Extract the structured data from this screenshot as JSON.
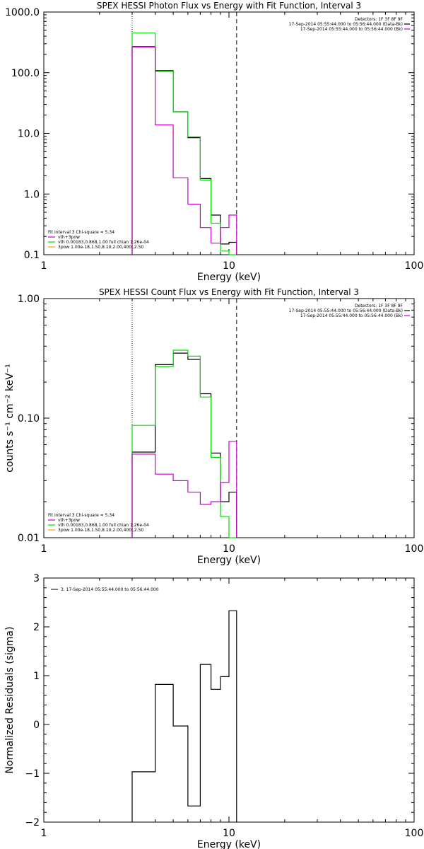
{
  "chart_data": [
    {
      "type": "line",
      "title": "SPEX HESSI Photon Flux vs Energy with Fit Function, Interval 3",
      "xlabel": "Energy (keV)",
      "ylabel": "",
      "x_scale": "log",
      "y_scale": "log",
      "xlim": [
        1,
        100
      ],
      "ylim": [
        0.1,
        1000
      ],
      "x_ticks": [
        {
          "v": 1,
          "label": "1"
        },
        {
          "v": 10,
          "label": "10"
        },
        {
          "v": 100,
          "label": "100"
        }
      ],
      "y_ticks": [
        {
          "v": 0.1,
          "label": "0.1"
        },
        {
          "v": 1,
          "label": "1.0"
        },
        {
          "v": 10,
          "label": "10.0"
        },
        {
          "v": 100,
          "label": "100.0"
        },
        {
          "v": 1000,
          "label": "1000.0"
        }
      ],
      "vlines": [
        {
          "x": 3.0,
          "style": "dotted"
        },
        {
          "x": 11.0,
          "style": "dashed"
        }
      ],
      "bin_edges": [
        3.0,
        4.0,
        5.0,
        6.0,
        7.0,
        8.0,
        9.0,
        10.0,
        11.0
      ],
      "series": [
        {
          "key": "data",
          "color": "#000000",
          "values": [
            270,
            108,
            22.7,
            8.5,
            1.8,
            0.45,
            0.15,
            0.16
          ]
        },
        {
          "key": "fit",
          "color": "#00dd00",
          "values": [
            450,
            105,
            22.7,
            8.8,
            1.7,
            0.33,
            0.115,
            0.1
          ]
        },
        {
          "key": "bk",
          "color": "#cc00cc",
          "values": [
            265,
            13.8,
            1.85,
            0.68,
            0.28,
            0.155,
            0.28,
            0.45
          ]
        }
      ],
      "legend_top": {
        "header": "Detectors: 1F 3F 8F 9F",
        "entries": [
          {
            "text": "17-Sep-2014 05:55:44.000 to 05:56:44.000 (Data-Bk)",
            "color": "#000000"
          },
          {
            "text": "17-Sep-2014 05:55:44.000 to 05:56:44.000 (Bk)",
            "color": "#cc00cc"
          }
        ]
      },
      "legend_fit": {
        "header": "Fit Interval 3   Chi-square = 5.34",
        "entries": [
          {
            "text": "vth+3pow",
            "color": "#cc00cc"
          },
          {
            "text": "vth 0.00183,0.868,1.00  full chian 1.26e-04",
            "color": "#00dd00"
          },
          {
            "text": "3pow 1.00e-18,1.50,8.10,2.00,400.,2.50",
            "color": "#ddaa00"
          }
        ]
      }
    },
    {
      "type": "line",
      "title": "SPEX HESSI Count Flux vs Energy with Fit Function, Interval 3",
      "xlabel": "Energy (keV)",
      "ylabel": "counts s⁻¹ cm⁻² keV⁻¹",
      "x_scale": "log",
      "y_scale": "log",
      "xlim": [
        1,
        100
      ],
      "ylim": [
        0.01,
        1
      ],
      "x_ticks": [
        {
          "v": 1,
          "label": "1"
        },
        {
          "v": 10,
          "label": "10"
        },
        {
          "v": 100,
          "label": "100"
        }
      ],
      "y_ticks": [
        {
          "v": 0.01,
          "label": "0.01"
        },
        {
          "v": 0.1,
          "label": "0.10"
        },
        {
          "v": 1,
          "label": "1.00"
        }
      ],
      "vlines": [
        {
          "x": 3.0,
          "style": "dotted"
        },
        {
          "x": 11.0,
          "style": "dashed"
        }
      ],
      "bin_edges": [
        3.0,
        4.0,
        5.0,
        6.0,
        7.0,
        8.0,
        9.0,
        10.0,
        11.0
      ],
      "series": [
        {
          "key": "data",
          "color": "#000000",
          "values": [
            0.052,
            0.28,
            0.35,
            0.31,
            0.16,
            0.051,
            0.02,
            0.024
          ]
        },
        {
          "key": "fit",
          "color": "#00dd00",
          "values": [
            0.087,
            0.27,
            0.37,
            0.33,
            0.15,
            0.047,
            0.015,
            0.01
          ]
        },
        {
          "key": "bk",
          "color": "#cc00cc",
          "values": [
            0.05,
            0.034,
            0.03,
            0.024,
            0.019,
            0.02,
            0.029,
            0.064
          ]
        }
      ],
      "legend_top": {
        "header": "Detectors: 1F 3F 8F 9F",
        "entries": [
          {
            "text": "17-Sep-2014 05:55:44.000 to 05:56:44.000 (Data-Bk)",
            "color": "#000000"
          },
          {
            "text": "17-Sep-2014 05:55:44.000 to 05:56:44.000 (Bk)",
            "color": "#cc00cc"
          }
        ]
      },
      "legend_fit": {
        "header": "Fit Interval 3   Chi-square = 5.34",
        "entries": [
          {
            "text": "vth+3pow",
            "color": "#cc00cc"
          },
          {
            "text": "vth 0.00183,0.868,1.00  full chian 1.26e-04",
            "color": "#00dd00"
          },
          {
            "text": "3pow 1.00e-18,1.50,8.10,2.00,400.,2.50",
            "color": "#ddaa00"
          }
        ]
      }
    },
    {
      "type": "line",
      "title": "",
      "xlabel": "Energy (keV)",
      "ylabel": "Normalized Residuals (sigma)",
      "x_scale": "log",
      "y_scale": "linear",
      "xlim": [
        1,
        100
      ],
      "ylim": [
        -2,
        3
      ],
      "x_ticks": [
        {
          "v": 1,
          "label": "1"
        },
        {
          "v": 10,
          "label": "10"
        },
        {
          "v": 100,
          "label": "100"
        }
      ],
      "y_ticks": [
        {
          "v": -2,
          "label": "−2"
        },
        {
          "v": -1,
          "label": "−1"
        },
        {
          "v": 0,
          "label": "0"
        },
        {
          "v": 1,
          "label": "1"
        },
        {
          "v": 2,
          "label": "2"
        },
        {
          "v": 3,
          "label": "3"
        }
      ],
      "vlines": [],
      "bin_edges": [
        3.0,
        4.0,
        5.0,
        6.0,
        7.0,
        8.0,
        9.0,
        10.0,
        11.0
      ],
      "series": [
        {
          "key": "residuals",
          "color": "#000000",
          "values": [
            -0.97,
            0.82,
            -0.03,
            -1.67,
            1.23,
            0.72,
            0.98,
            2.33
          ]
        }
      ],
      "legend_top": {
        "header": "",
        "entries": [
          {
            "text": "3. 17-Sep-2014 05:55:44.000 to 05:56:44.000",
            "color": "#000000"
          }
        ]
      },
      "legend_fit": null
    }
  ]
}
